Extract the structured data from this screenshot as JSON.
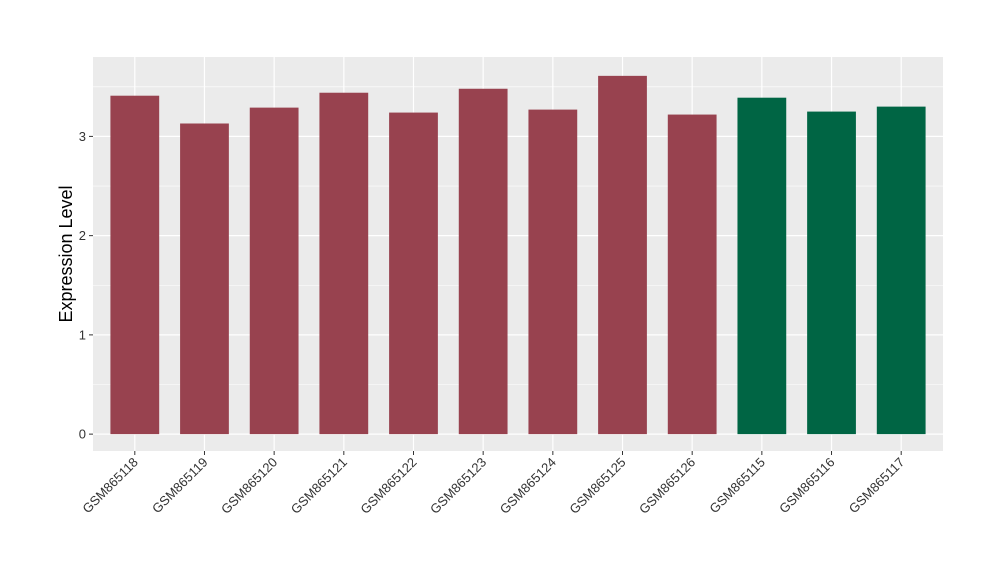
{
  "chart_data": {
    "type": "bar",
    "title": "",
    "xlabel": "",
    "ylabel": "Expression Level",
    "ylim": [
      -0.17,
      3.8
    ],
    "yticks": [
      0,
      1,
      2,
      3
    ],
    "ytick_labels": [
      "0",
      "1",
      "2",
      "3"
    ],
    "grid": true,
    "legend": "none",
    "categories": [
      "GSM865118",
      "GSM865119",
      "GSM865120",
      "GSM865121",
      "GSM865122",
      "GSM865123",
      "GSM865124",
      "GSM865125",
      "GSM865126",
      "GSM865115",
      "GSM865116",
      "GSM865117"
    ],
    "values": [
      3.41,
      3.13,
      3.29,
      3.44,
      3.24,
      3.48,
      3.27,
      3.61,
      3.22,
      3.39,
      3.25,
      3.3
    ],
    "bar_colors": [
      "#98424F",
      "#98424F",
      "#98424F",
      "#98424F",
      "#98424F",
      "#98424F",
      "#98424F",
      "#98424F",
      "#98424F",
      "#006544",
      "#006544",
      "#006544"
    ]
  },
  "colors": {
    "panel_background": "#EBEBEB",
    "grid_major": "#FFFFFF",
    "group_a": "#98424F",
    "group_b": "#006544"
  }
}
